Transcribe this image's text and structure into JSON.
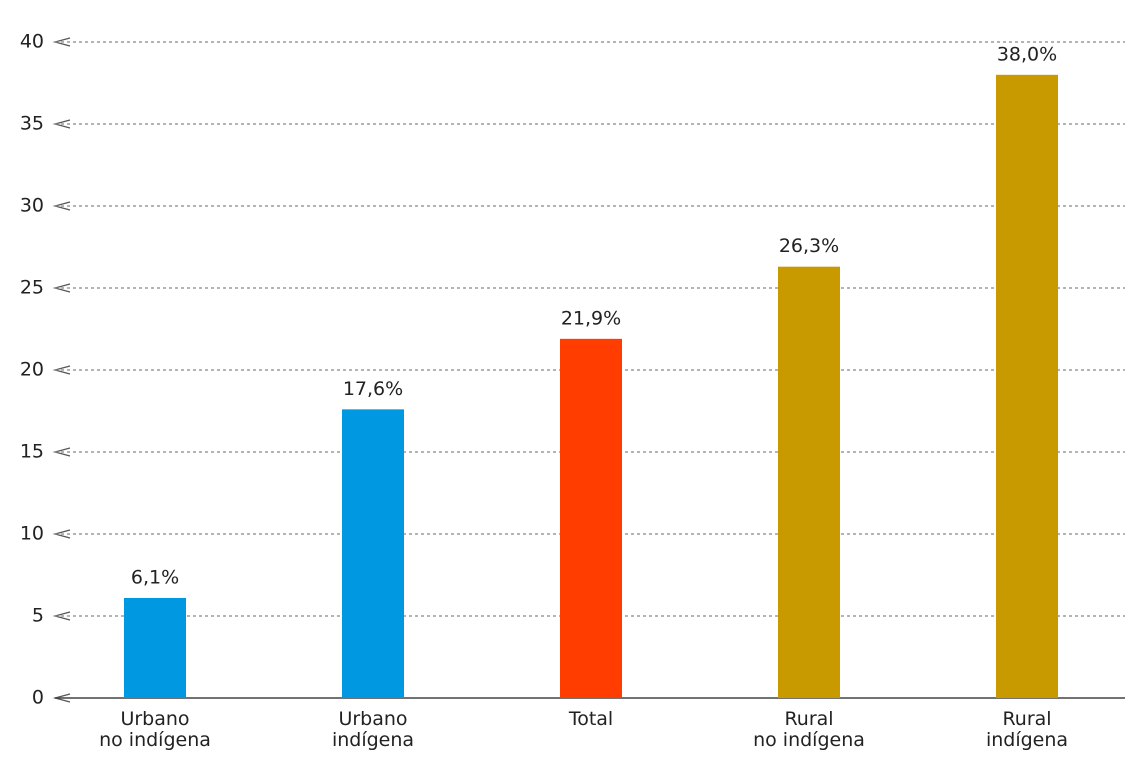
{
  "chart_data": {
    "type": "bar",
    "categories": [
      "Urbano\nno indígena",
      "Urbano\nindígena",
      "Total",
      "Rural\nno indígena",
      "Rural\nindígena"
    ],
    "values": [
      6.1,
      17.6,
      21.9,
      26.3,
      38.0
    ],
    "value_labels": [
      "6,1%",
      "17,6%",
      "21,9%",
      "26,3%",
      "38,0%"
    ],
    "colors": [
      "#0098e0",
      "#0098e0",
      "#ff3d00",
      "#c99a00",
      "#c99a00"
    ],
    "ylim": [
      0,
      40
    ],
    "yticks": [
      0,
      5,
      10,
      15,
      20,
      25,
      30,
      35,
      40
    ],
    "grid": true
  }
}
